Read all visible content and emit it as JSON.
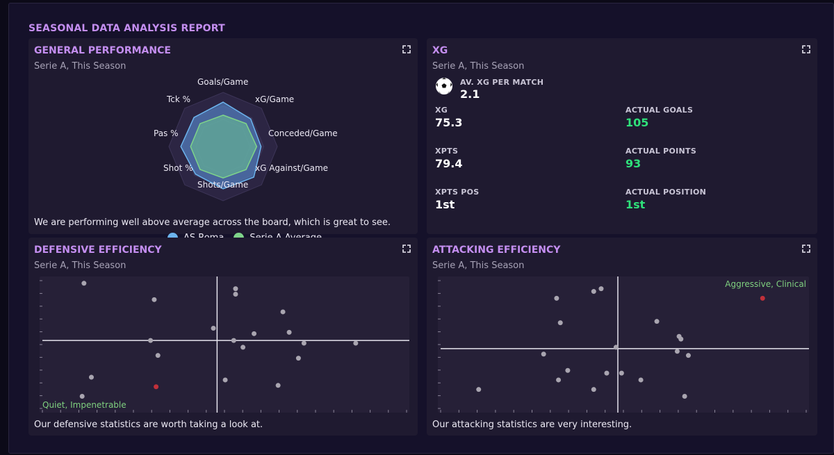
{
  "report": {
    "title": "SEASONAL DATA ANALYSIS REPORT"
  },
  "general": {
    "title": "GENERAL PERFORMANCE",
    "subtitle": "Serie A, This Season",
    "caption": "We are performing well above average across the board, which is great to see.",
    "radar_axes": [
      "Goals/Game",
      "xG/Game",
      "Conceded/Game",
      "xG Against/Game",
      "Shots/Game",
      "Shot %",
      "Pas %",
      "Tck %"
    ],
    "series": [
      {
        "name": "AS Roma",
        "color": "#6cb4ee",
        "values": [
          0.82,
          0.72,
          0.7,
          0.8,
          0.78,
          0.72,
          0.78,
          0.76
        ]
      },
      {
        "name": "Serie A Average",
        "color": "#7fd48a",
        "values": [
          0.58,
          0.6,
          0.62,
          0.6,
          0.58,
          0.6,
          0.6,
          0.6
        ]
      }
    ]
  },
  "xg": {
    "title": "XG",
    "subtitle": "Serie A, This Season",
    "av_label": "AV. XG PER MATCH",
    "av_value": "2.1",
    "stats": [
      {
        "label": "XG",
        "value": "75.3",
        "green": false
      },
      {
        "label": "ACTUAL GOALS",
        "value": "105",
        "green": true
      },
      {
        "label": "XPTS",
        "value": "79.4",
        "green": false
      },
      {
        "label": "ACTUAL POINTS",
        "value": "93",
        "green": true
      },
      {
        "label": "XPTS POS",
        "value": "1st",
        "green": false
      },
      {
        "label": "ACTUAL POSITION",
        "value": "1st",
        "green": true
      }
    ]
  },
  "defensive": {
    "title": "DEFENSIVE EFFICIENCY",
    "subtitle": "Serie A, This Season",
    "caption": "Our defensive statistics are worth taking a look at.",
    "quadrant_label": "Quiet, Impenetrable",
    "points": [
      [
        0.12,
        0.05,
        0
      ],
      [
        0.31,
        0.17,
        0
      ],
      [
        0.3,
        0.47,
        0
      ],
      [
        0.32,
        0.58,
        0
      ],
      [
        0.14,
        0.74,
        0
      ],
      [
        0.115,
        0.88,
        0
      ],
      [
        0.315,
        0.81,
        1
      ],
      [
        0.53,
        0.09,
        0
      ],
      [
        0.53,
        0.13,
        0
      ],
      [
        0.47,
        0.38,
        0
      ],
      [
        0.58,
        0.42,
        0
      ],
      [
        0.525,
        0.47,
        0
      ],
      [
        0.55,
        0.52,
        0
      ],
      [
        0.658,
        0.26,
        0
      ],
      [
        0.675,
        0.41,
        0
      ],
      [
        0.715,
        0.49,
        0
      ],
      [
        0.7,
        0.6,
        0
      ],
      [
        0.855,
        0.49,
        0
      ],
      [
        0.502,
        0.76,
        0
      ],
      [
        0.645,
        0.8,
        0
      ]
    ],
    "h_line": 0.47,
    "v_line": 0.48
  },
  "attacking": {
    "title": "ATTACKING EFFICIENCY",
    "subtitle": "Serie A, This Season",
    "caption": "Our attacking statistics are very interesting.",
    "quadrant_label": "Aggressive, Clinical",
    "points": [
      [
        0.875,
        0.16,
        1
      ],
      [
        0.32,
        0.16,
        0
      ],
      [
        0.42,
        0.11,
        0
      ],
      [
        0.44,
        0.09,
        0
      ],
      [
        0.33,
        0.34,
        0
      ],
      [
        0.59,
        0.33,
        0
      ],
      [
        0.65,
        0.44,
        0
      ],
      [
        0.655,
        0.46,
        0
      ],
      [
        0.645,
        0.55,
        0
      ],
      [
        0.675,
        0.58,
        0
      ],
      [
        0.48,
        0.52,
        0
      ],
      [
        0.285,
        0.57,
        0
      ],
      [
        0.35,
        0.69,
        0
      ],
      [
        0.325,
        0.76,
        0
      ],
      [
        0.455,
        0.71,
        0
      ],
      [
        0.495,
        0.71,
        0
      ],
      [
        0.547,
        0.76,
        0
      ],
      [
        0.42,
        0.83,
        0
      ],
      [
        0.11,
        0.83,
        0
      ],
      [
        0.665,
        0.88,
        0
      ]
    ],
    "h_line": 0.53,
    "v_line": 0.485
  },
  "colors": {
    "accent": "#c48ef0",
    "green": "#2fe07a",
    "point": "#a9a5b0",
    "highlight": "#c0303a"
  },
  "icons": {
    "expand": "expand-icon",
    "ball": "football-icon"
  }
}
